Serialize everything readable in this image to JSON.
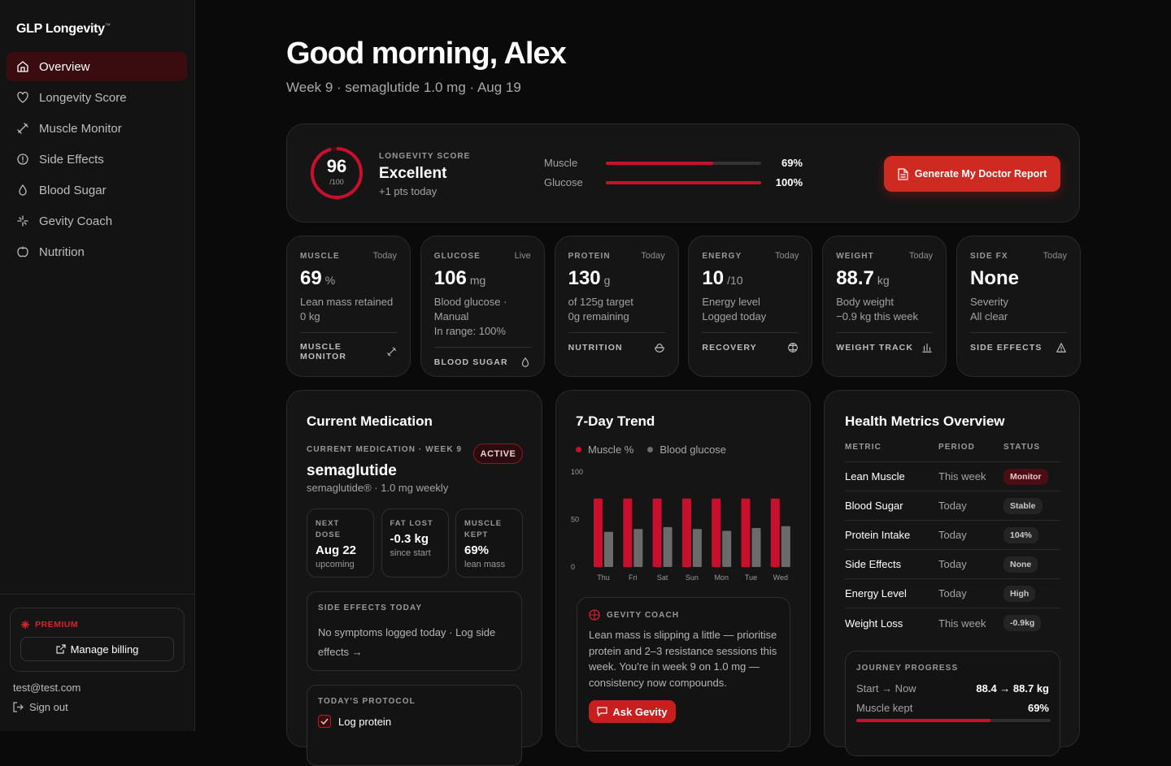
{
  "sidebar": {
    "brand": "GLP Longevity",
    "brand_mark": "™",
    "nav": [
      "Overview",
      "Longevity Score",
      "Muscle Monitor",
      "Side Effects",
      "Blood Sugar",
      "Gevity Coach",
      "Nutrition"
    ],
    "premium": "PREMIUM",
    "billing": "Manage billing",
    "email": "test@test.com",
    "signout": "Sign out"
  },
  "header": {
    "greeting": "Good morning, Alex",
    "subtitle": "Week 9 · semaglutide 1.0 mg · Aug 19"
  },
  "score_card": {
    "score": 96,
    "score_max": {
      "value": 100,
      "label": "/100"
    },
    "label": "LONGEVITY SCORE",
    "rating": "Excellent",
    "delta": "+1 pts today",
    "bars": [
      {
        "name": "Muscle",
        "value": 69,
        "value_label": "69%"
      },
      {
        "name": "Glucose",
        "value": 100,
        "value_label": "100%"
      }
    ],
    "button": "Generate My Doctor Report"
  },
  "tiles": [
    {
      "label": "MUSCLE",
      "when": "Today",
      "value": "69",
      "unit": "%",
      "lines": [
        "Lean mass retained",
        "0 kg"
      ],
      "link": "MUSCLE MONITOR"
    },
    {
      "label": "GLUCOSE",
      "when": "Live",
      "value": "106",
      "unit": "mg",
      "lines": [
        "Blood glucose · Manual",
        "In range: 100%"
      ],
      "link": "BLOOD SUGAR"
    },
    {
      "label": "PROTEIN",
      "when": "Today",
      "value": "130",
      "unit": "g",
      "lines": [
        "of 125g target",
        "0g remaining"
      ],
      "link": "NUTRITION"
    },
    {
      "label": "ENERGY",
      "when": "Today",
      "value": "10",
      "unit": "/10",
      "lines": [
        "Energy level",
        "Logged today"
      ],
      "link": "RECOVERY"
    },
    {
      "label": "WEIGHT",
      "when": "Today",
      "value": "88.7",
      "unit": "kg",
      "lines": [
        "Body weight",
        "−0.9 kg this week"
      ],
      "link": "WEIGHT TRACK"
    },
    {
      "label": "SIDE FX",
      "when": "Today",
      "value": "None",
      "lines": [
        "Severity",
        "All clear"
      ],
      "link": "SIDE EFFECTS"
    }
  ],
  "medication": {
    "title": "Current Medication",
    "eyebrow": "CURRENT MEDICATION · WEEK 9",
    "status": "ACTIVE",
    "drug": "semaglutide",
    "dose": "semaglutide® · 1.0 mg weekly",
    "stats": [
      {
        "label": "NEXT DOSE",
        "value": "Aug 22",
        "note": "upcoming"
      },
      {
        "label": "FAT LOST",
        "value": "-0.3 kg",
        "note": "since start"
      },
      {
        "label": "MUSCLE KEPT",
        "value": "69%",
        "note": "lean mass"
      }
    ],
    "side_effects_title": "SIDE EFFECTS TODAY",
    "side_effects_text": "No symptoms logged today · Log side effects →",
    "protocol_title": "TODAY'S PROTOCOL",
    "protocol": [
      "Log protein"
    ]
  },
  "chart_data": {
    "type": "bar",
    "title": "7-Day Trend",
    "categories": [
      "Thu",
      "Fri",
      "Sat",
      "Sun",
      "Mon",
      "Tue",
      "Wed"
    ],
    "series": [
      {
        "name": "Muscle %",
        "color": "#c8102e",
        "values": [
          72,
          72,
          72,
          72,
          72,
          72,
          72
        ]
      },
      {
        "name": "Blood glucose",
        "color": "#6b6b6b",
        "values": [
          37,
          40,
          42,
          40,
          38,
          41,
          43
        ]
      }
    ],
    "ylim": [
      0,
      100
    ],
    "yticks": [
      0,
      50,
      100
    ]
  },
  "coach": {
    "title": "GEVITY COACH",
    "text": "Lean mass is slipping a little — prioritise protein and 2–3 resistance sessions this week. You're in week 9 on 1.0 mg — consistency now compounds.",
    "button": "Ask Gevity"
  },
  "metrics": {
    "title": "Health Metrics Overview",
    "columns": [
      "METRIC",
      "PERIOD",
      "STATUS"
    ],
    "rows": [
      [
        "Lean Muscle",
        "This week",
        "Monitor"
      ],
      [
        "Blood Sugar",
        "Today",
        "Stable"
      ],
      [
        "Protein Intake",
        "Today",
        "104%"
      ],
      [
        "Side Effects",
        "Today",
        "None"
      ],
      [
        "Energy Level",
        "Today",
        "High"
      ],
      [
        "Weight Loss",
        "This week",
        "-0.9kg"
      ]
    ],
    "journey": {
      "title": "JOURNEY PROGRESS",
      "start_label": "Start → Now",
      "start_value": "88.4 → 88.7 kg",
      "muscle_label": "Muscle kept",
      "muscle": {
        "value": 69,
        "label": "69%"
      }
    }
  }
}
